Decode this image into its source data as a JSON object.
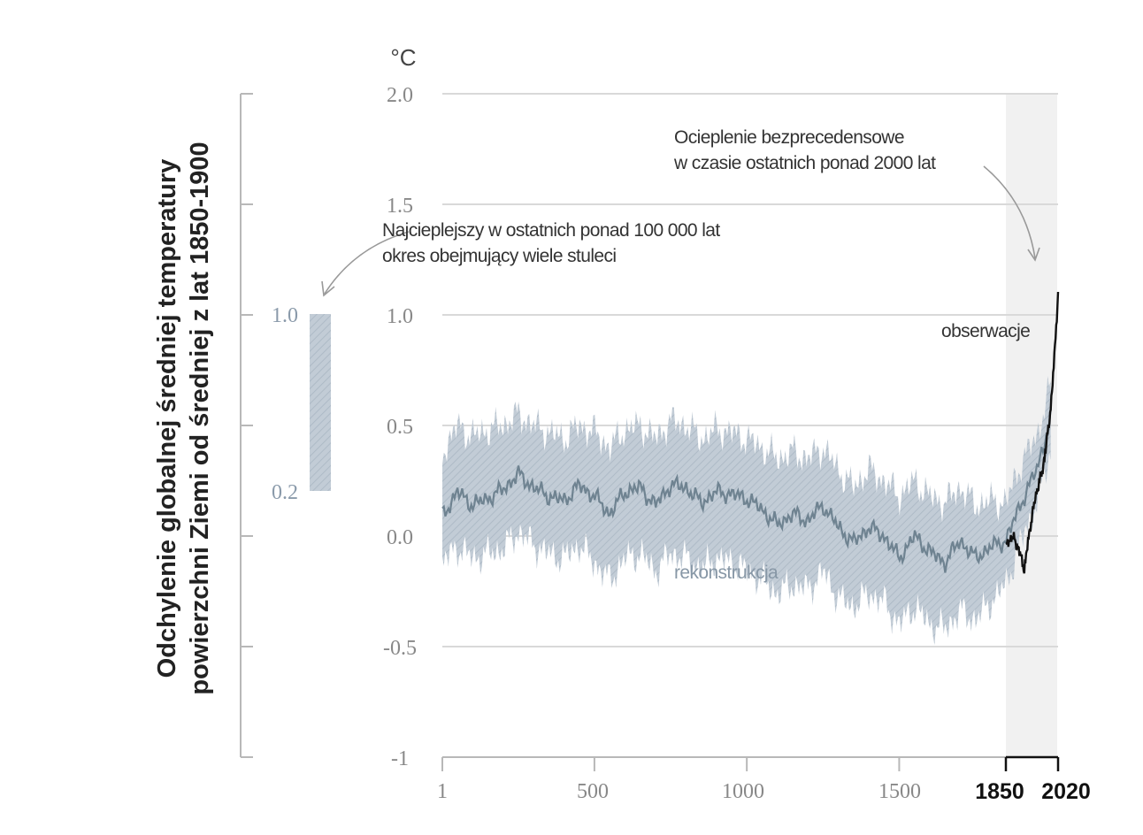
{
  "y_axis_title": {
    "line1": "Odchylenie globalnej średniej temperatury",
    "line2": "powierzchni Ziemi od średniej z lat 1850-1900"
  },
  "unit": "°C",
  "side_panel": {
    "range": [
      0.2,
      1.0
    ],
    "tick_labels": [
      "1.0",
      "0.2"
    ],
    "annotation": [
      "Najcieplejszy w ostatnich ponad 100 000 lat",
      "okres obejmujący wiele stuleci"
    ]
  },
  "annotations": {
    "top_right": [
      "Ocieplenie bezprecedensowe",
      "w czasie ostatnich ponad 2000 lat"
    ],
    "observations": "obserwacje",
    "reconstruction": "rekonstrukcja"
  },
  "colors": {
    "reconstruction_line": "#6f8391",
    "uncertainty_band": "#c2ccd6",
    "observations_line": "#111111",
    "recent_period_shade": "#f1f1f1",
    "grid": "#d9d9d9"
  },
  "chart_data": {
    "type": "line",
    "title": "",
    "ylabel": "Odchylenie globalnej średniej temperatury powierzchni Ziemi od średniej z lat 1850-1900",
    "yunit": "°C",
    "ylim": [
      -1.0,
      2.0
    ],
    "yticks": [
      2.0,
      1.5,
      1.0,
      0.5,
      0.0,
      -0.5,
      -1
    ],
    "ytick_labels": [
      "2.0",
      "1.5",
      "1.0",
      "0.5",
      "0.0",
      "-0.5",
      "-1"
    ],
    "xlim": [
      1,
      2020
    ],
    "x_segments": [
      [
        1,
        1850
      ],
      [
        1850,
        2020
      ]
    ],
    "xtick_labels": [
      "1",
      "500",
      "1000",
      "1500",
      "1850",
      "2020"
    ],
    "xticks": [
      1,
      500,
      1000,
      1500,
      1850,
      2020
    ],
    "grid": true,
    "highlighted_period": [
      1850,
      2020
    ],
    "series": [
      {
        "name": "rekonstrukcja",
        "x": [
          1,
          50,
          100,
          150,
          200,
          250,
          300,
          350,
          400,
          450,
          500,
          550,
          600,
          650,
          700,
          750,
          800,
          850,
          900,
          950,
          1000,
          1050,
          1100,
          1150,
          1200,
          1250,
          1300,
          1350,
          1400,
          1450,
          1500,
          1550,
          1600,
          1650,
          1700,
          1750,
          1800,
          1850,
          1900,
          1950,
          2000
        ],
        "values": [
          0.09,
          0.2,
          0.14,
          0.17,
          0.21,
          0.28,
          0.22,
          0.18,
          0.16,
          0.23,
          0.18,
          0.1,
          0.2,
          0.22,
          0.14,
          0.23,
          0.22,
          0.15,
          0.2,
          0.19,
          0.17,
          0.12,
          0.05,
          0.1,
          0.07,
          0.14,
          0.04,
          -0.03,
          0.04,
          0.0,
          -0.1,
          0.0,
          -0.07,
          -0.12,
          -0.02,
          -0.1,
          -0.05,
          -0.02,
          0.15,
          0.3,
          0.55
        ],
        "upper": [
          0.38,
          0.5,
          0.45,
          0.48,
          0.5,
          0.55,
          0.5,
          0.47,
          0.44,
          0.5,
          0.47,
          0.4,
          0.48,
          0.5,
          0.44,
          0.52,
          0.5,
          0.44,
          0.48,
          0.47,
          0.44,
          0.4,
          0.35,
          0.38,
          0.35,
          0.4,
          0.3,
          0.22,
          0.3,
          0.25,
          0.18,
          0.25,
          0.18,
          0.15,
          0.22,
          0.14,
          0.16,
          0.15,
          0.33,
          0.45,
          0.7
        ],
        "lower": [
          -0.12,
          -0.05,
          -0.1,
          -0.08,
          -0.06,
          0.02,
          -0.04,
          -0.08,
          -0.1,
          -0.04,
          -0.12,
          -0.2,
          -0.1,
          -0.08,
          -0.16,
          -0.08,
          -0.1,
          -0.15,
          -0.1,
          -0.12,
          -0.15,
          -0.2,
          -0.26,
          -0.22,
          -0.24,
          -0.16,
          -0.28,
          -0.32,
          -0.26,
          -0.3,
          -0.4,
          -0.32,
          -0.4,
          -0.42,
          -0.34,
          -0.38,
          -0.3,
          -0.22,
          -0.02,
          0.15,
          0.4
        ]
      },
      {
        "name": "obserwacje",
        "x": [
          1850,
          1870,
          1890,
          1910,
          1930,
          1950,
          1970,
          1990,
          2000,
          2010,
          2020
        ],
        "values": [
          -0.05,
          0.0,
          -0.05,
          -0.15,
          0.05,
          0.2,
          0.3,
          0.5,
          0.65,
          0.85,
          1.1
        ]
      }
    ]
  }
}
